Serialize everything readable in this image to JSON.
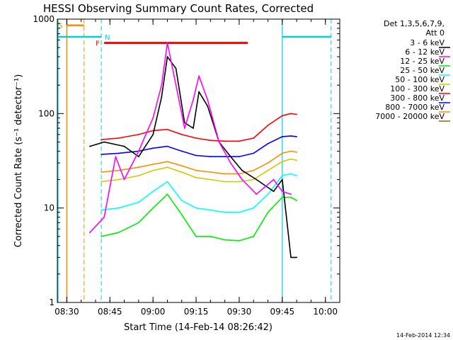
{
  "colors": {
    "axes": "#000000",
    "band_3_6": "#000000",
    "band_6_12": "#ff00ff",
    "band_12_25": "#00ee00",
    "band_25_50": "#00ffff",
    "band_50_100": "#d0c800",
    "band_100_300": "#ff0000",
    "band_300_800": "#0000ff",
    "band_800_7000": "#ff8c00",
    "band_7000_20000": "#8b6914",
    "saa_marker": "#ff8c00",
    "night_marker": "#00d0e0",
    "flare_marker": "#ff0000"
  },
  "footer": {
    "date_stamp": "14-Feb-2014 12:34"
  },
  "chart_data": {
    "type": "line",
    "title": "HESSI Observing Summary Count Rates, Corrected",
    "xlabel": "Start Time (14-Feb-14 08:26:42)",
    "ylabel": "Corrected Count Rate (s⁻¹ detector⁻¹)",
    "xlim": [
      "08:26:42",
      "10:05:00"
    ],
    "ylim": [
      1,
      1000
    ],
    "yscale": "log",
    "grid": false,
    "x_ticks": [
      "08:30",
      "08:45",
      "09:00",
      "09:15",
      "09:30",
      "09:45",
      "10:00"
    ],
    "y_ticks": [
      "1",
      "10",
      "100",
      "1000"
    ],
    "legend": {
      "placement": "right",
      "header_line1": "Det 1,3,5,6,7,9,",
      "header_line2": "Att 0"
    },
    "series": [
      {
        "name": "3 - 6 keV",
        "x": [
          "08:38",
          "08:43",
          "08:50",
          "08:55",
          "09:00",
          "09:03",
          "09:05",
          "09:08",
          "09:11",
          "09:14",
          "09:16",
          "09:19",
          "09:23",
          "09:27",
          "09:31",
          "09:36",
          "09:42",
          "09:45",
          "09:48",
          "09:50"
        ],
        "values": [
          45,
          50,
          45,
          35,
          60,
          150,
          400,
          300,
          80,
          70,
          170,
          120,
          50,
          35,
          25,
          20,
          15,
          20,
          3,
          3
        ]
      },
      {
        "name": "6 - 12 keV",
        "x": [
          "08:38",
          "08:43",
          "08:47",
          "08:50",
          "08:55",
          "09:00",
          "09:03",
          "09:05",
          "09:08",
          "09:11",
          "09:14",
          "09:16",
          "09:19",
          "09:23",
          "09:27",
          "09:31",
          "09:36",
          "09:42",
          "09:45",
          "09:48"
        ],
        "values": [
          5.5,
          8,
          35,
          20,
          40,
          90,
          200,
          560,
          200,
          70,
          140,
          250,
          140,
          50,
          30,
          20,
          14,
          20,
          15,
          14
        ]
      },
      {
        "name": "12 - 25 keV",
        "x": [
          "08:42",
          "08:48",
          "08:55",
          "09:00",
          "09:05",
          "09:10",
          "09:15",
          "09:20",
          "09:25",
          "09:30",
          "09:35",
          "09:40",
          "09:45",
          "09:48",
          "09:50"
        ],
        "values": [
          5,
          5.5,
          7,
          10,
          14,
          8.5,
          5,
          5,
          4.6,
          4.5,
          5,
          9,
          13,
          13,
          12
        ]
      },
      {
        "name": "25 - 50 keV",
        "x": [
          "08:42",
          "08:48",
          "08:55",
          "09:00",
          "09:05",
          "09:10",
          "09:15",
          "09:20",
          "09:25",
          "09:30",
          "09:35",
          "09:40",
          "09:45",
          "09:48",
          "09:50"
        ],
        "values": [
          9.5,
          10,
          11.5,
          15,
          19,
          12,
          10,
          9.5,
          9,
          9,
          10,
          14,
          22,
          23,
          22
        ]
      },
      {
        "name": "50 - 100 keV",
        "x": [
          "08:42",
          "08:48",
          "08:55",
          "09:00",
          "09:05",
          "09:10",
          "09:15",
          "09:20",
          "09:25",
          "09:30",
          "09:35",
          "09:40",
          "09:45",
          "09:48",
          "09:50"
        ],
        "values": [
          19,
          20,
          22,
          25,
          27,
          24,
          21,
          20,
          19,
          19,
          20,
          25,
          31,
          33,
          32
        ]
      },
      {
        "name": "100 - 300 keV",
        "x": [
          "08:42",
          "08:48",
          "08:55",
          "09:00",
          "09:05",
          "09:10",
          "09:15",
          "09:20",
          "09:25",
          "09:30",
          "09:35",
          "09:40",
          "09:45",
          "09:48",
          "09:50"
        ],
        "values": [
          53,
          55,
          60,
          66,
          68,
          60,
          55,
          52,
          51,
          51,
          55,
          75,
          95,
          100,
          98
        ]
      },
      {
        "name": "300 - 800 keV",
        "x": [
          "08:42",
          "08:48",
          "08:55",
          "09:00",
          "09:05",
          "09:10",
          "09:15",
          "09:20",
          "09:25",
          "09:30",
          "09:35",
          "09:40",
          "09:45",
          "09:48",
          "09:50"
        ],
        "values": [
          37,
          38,
          40,
          43,
          45,
          40,
          36,
          35,
          35,
          35,
          38,
          48,
          57,
          58,
          57
        ]
      },
      {
        "name": "800 - 7000 keV",
        "x": [
          "08:42",
          "08:48",
          "08:55",
          "09:00",
          "09:05",
          "09:10",
          "09:15",
          "09:20",
          "09:25",
          "09:30",
          "09:35",
          "09:40",
          "09:45",
          "09:48",
          "09:50"
        ],
        "values": [
          24,
          25,
          27,
          29,
          31,
          28,
          25,
          24,
          23,
          23,
          25,
          30,
          38,
          40,
          39
        ]
      },
      {
        "name": "7000 - 20000 keV",
        "x": [],
        "values": []
      }
    ],
    "markers": {
      "saa": {
        "label": "S",
        "start": "08:30",
        "end": "08:36"
      },
      "night": {
        "label": "N",
        "start": "08:42",
        "end": "09:45"
      },
      "flare": {
        "label": "F",
        "start": "08:43",
        "end": "09:33",
        "level": 560
      },
      "night_bar_left": {
        "start": "08:26:42",
        "end": "08:42",
        "level": 650
      },
      "night_bar_right": {
        "start": "09:45",
        "end": "10:02",
        "level": 650
      },
      "saa_bar": {
        "start": "08:30",
        "end": "08:36",
        "level": 860
      }
    }
  }
}
